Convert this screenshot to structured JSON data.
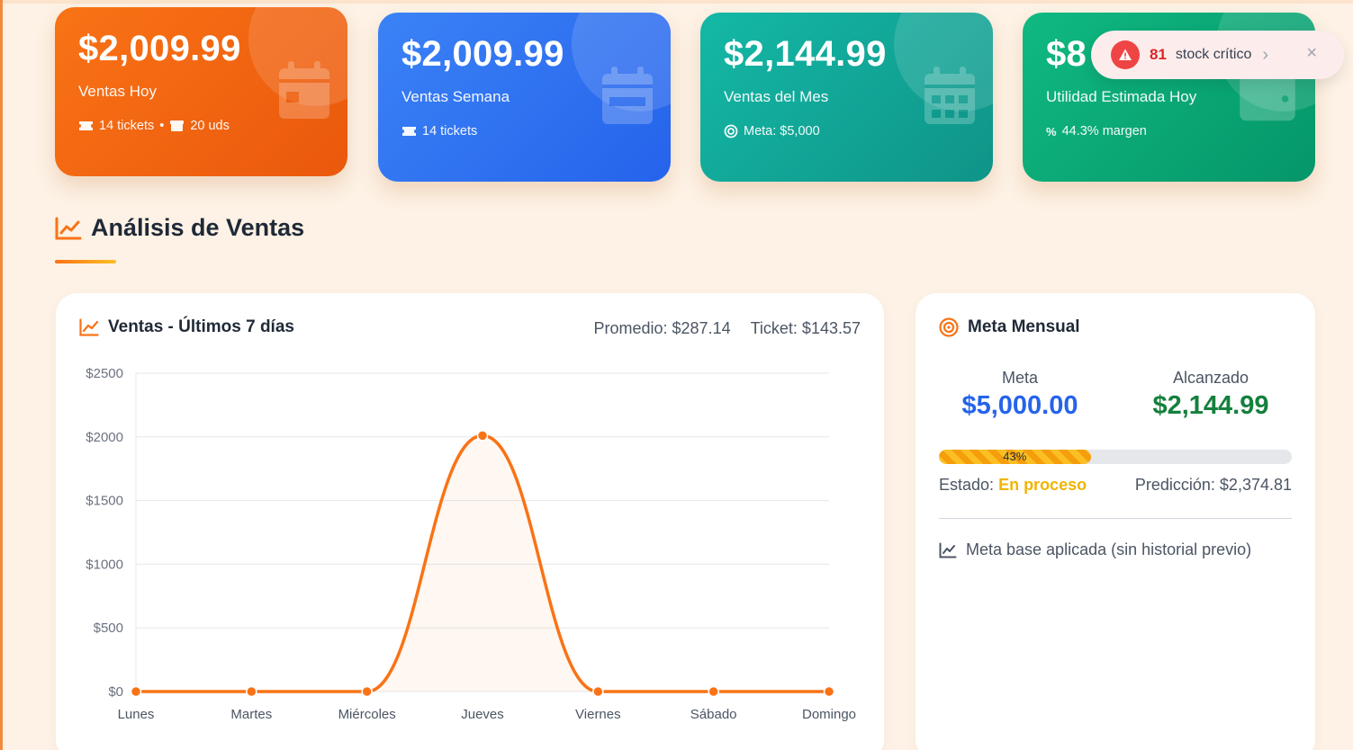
{
  "cards": [
    {
      "amount": "$2,009.99",
      "label": "Ventas Hoy",
      "tickets": "14 tickets",
      "sep": "•",
      "units": "20 uds",
      "icon": "calendar-day-icon"
    },
    {
      "amount": "$2,009.99",
      "label": "Ventas Semana",
      "tickets": "14 tickets",
      "icon": "calendar-week-icon"
    },
    {
      "amount": "$2,144.99",
      "label": "Ventas del Mes",
      "goal": "Meta: $5,000",
      "icon": "calendar-month-icon"
    },
    {
      "amount": "$8",
      "label": "Utilidad Estimada Hoy",
      "margin": "44.3% margen",
      "icon": "wallet-icon"
    }
  ],
  "toast": {
    "count": "81",
    "text": "stock crítico",
    "chevron": "›",
    "close": "×"
  },
  "section": {
    "title": "Análisis de Ventas"
  },
  "sales_panel": {
    "title": "Ventas - Últimos 7 días",
    "average": "Promedio: $287.14",
    "ticket": "Ticket: $143.57"
  },
  "goal_panel": {
    "title": "Meta Mensual",
    "meta_label": "Meta",
    "meta_value": "$5,000.00",
    "reached_label": "Alcanzado",
    "reached_value": "$2,144.99",
    "progress_percent": 43,
    "progress_text": "43%",
    "status_label": "Estado:",
    "status_value": "En proceso",
    "prediction": "Predicción: $2,374.81",
    "note": "Meta base aplicada (sin historial previo)"
  },
  "colors": {
    "accent": "#f97316",
    "blue": "#2563eb",
    "teal": "#0f9488",
    "green": "#059669",
    "danger": "#ef4444",
    "warning": "#f0b400"
  },
  "chart_data": {
    "type": "line",
    "categories": [
      "Lunes",
      "Martes",
      "Miércoles",
      "Jueves",
      "Viernes",
      "Sábado",
      "Domingo"
    ],
    "series": [
      {
        "values": [
          0,
          0,
          0,
          2009.99,
          0,
          0,
          0
        ]
      }
    ],
    "yticks": [
      "$0",
      "$500",
      "$1000",
      "$1500",
      "$2000",
      "$2500"
    ],
    "ylim": [
      0,
      2500
    ],
    "grid": true,
    "legend": "none",
    "title": "Ventas - Últimos 7 días"
  }
}
